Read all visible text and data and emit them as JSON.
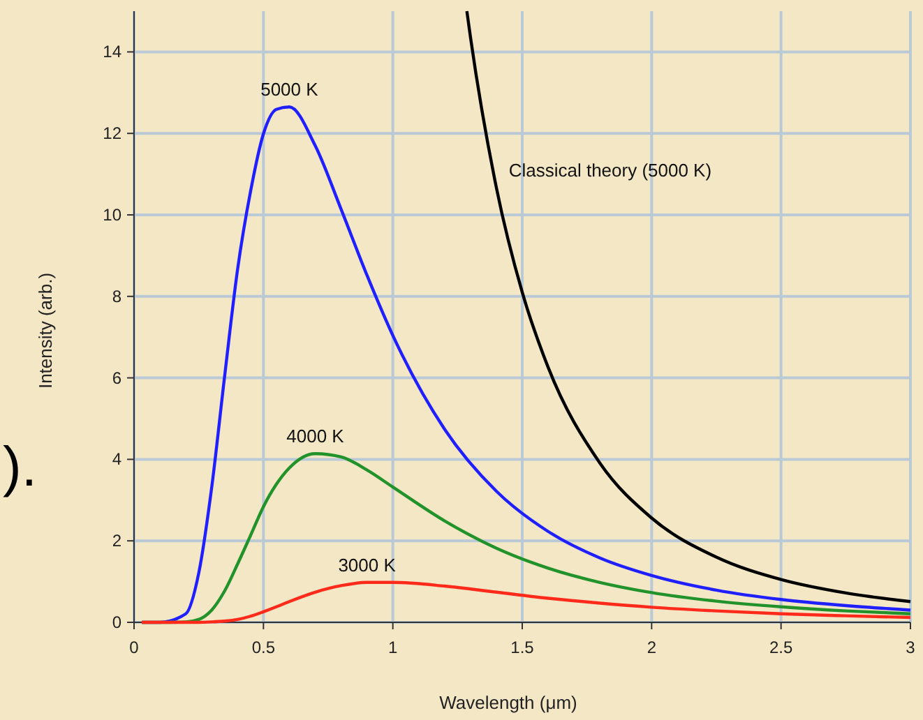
{
  "chart_data": {
    "type": "line",
    "xlabel": "Wavelength (μm)",
    "ylabel": "Intensity (arb.)",
    "xlim": [
      0,
      3
    ],
    "ylim": [
      0,
      15
    ],
    "xticks": [
      0,
      0.5,
      1,
      1.5,
      2,
      2.5,
      3
    ],
    "yticks": [
      0,
      2,
      4,
      6,
      8,
      10,
      12,
      14
    ],
    "grid": true,
    "marker": "none",
    "line_style": "solid",
    "annotations": [
      ")."
    ],
    "series": [
      {
        "name": "5000 K",
        "color": "#2020ff",
        "x": [
          0.03,
          0.1,
          0.2,
          0.25,
          0.3,
          0.35,
          0.4,
          0.45,
          0.5,
          0.55,
          0.6,
          0.7,
          0.8,
          0.9,
          1.0,
          1.2,
          1.4,
          1.6,
          1.8,
          2.0,
          2.25,
          2.5,
          2.75,
          3.0
        ],
        "values": [
          0,
          0,
          0.21,
          1.21,
          3.31,
          6.04,
          8.66,
          10.57,
          11.99,
          12.59,
          12.65,
          11.7,
          10.14,
          8.52,
          7.04,
          4.74,
          3.22,
          2.23,
          1.58,
          1.15,
          0.79,
          0.56,
          0.41,
          0.3
        ]
      },
      {
        "name": "4000 K",
        "color": "#22922a",
        "x": [
          0.03,
          0.1,
          0.2,
          0.25,
          0.3,
          0.35,
          0.4,
          0.45,
          0.5,
          0.55,
          0.6,
          0.7,
          0.8,
          0.9,
          1.0,
          1.2,
          1.4,
          1.6,
          1.8,
          2.0,
          2.25,
          2.5,
          2.75,
          3.0
        ],
        "values": [
          0,
          0,
          0.01,
          0.07,
          0.3,
          0.77,
          1.43,
          2.13,
          2.84,
          3.39,
          3.79,
          4.14,
          4.06,
          3.74,
          3.32,
          2.49,
          1.82,
          1.33,
          0.98,
          0.73,
          0.52,
          0.38,
          0.28,
          0.21
        ]
      },
      {
        "name": "3000 K",
        "color": "#ff2a1a",
        "x": [
          0.03,
          0.1,
          0.2,
          0.25,
          0.3,
          0.35,
          0.4,
          0.45,
          0.5,
          0.55,
          0.6,
          0.7,
          0.8,
          0.9,
          1.0,
          1.2,
          1.4,
          1.6,
          1.8,
          2.0,
          2.25,
          2.5,
          2.75,
          3.0
        ],
        "values": [
          0,
          0,
          0,
          0,
          0.01,
          0.03,
          0.07,
          0.15,
          0.26,
          0.38,
          0.51,
          0.74,
          0.9,
          0.98,
          0.98,
          0.89,
          0.74,
          0.59,
          0.47,
          0.37,
          0.28,
          0.21,
          0.16,
          0.12
        ]
      },
      {
        "name": "Classical theory (5000 K)",
        "color": "#000000",
        "x": [
          1.286,
          1.3,
          1.4,
          1.5,
          1.6,
          1.8,
          2.0,
          2.25,
          2.5,
          2.75,
          3.0
        ],
        "values": [
          15,
          14.36,
          10.67,
          8.1,
          6.26,
          3.91,
          2.56,
          1.6,
          1.05,
          0.72,
          0.51
        ]
      }
    ]
  }
}
